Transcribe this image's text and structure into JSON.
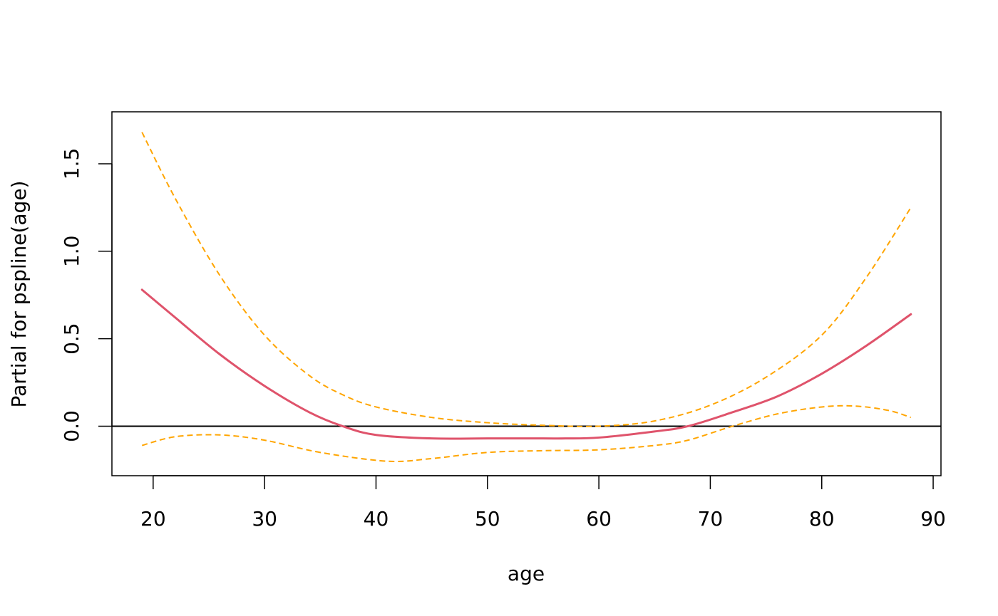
{
  "chart_data": {
    "type": "line",
    "xlabel": "age",
    "ylabel": "Partial for pspline(age)",
    "xlim": [
      16.3,
      90.7
    ],
    "ylim": [
      -0.283,
      1.797
    ],
    "x_ticks": [
      20,
      30,
      40,
      50,
      60,
      70,
      80,
      90
    ],
    "x_tick_labels": [
      "20",
      "30",
      "40",
      "50",
      "60",
      "70",
      "80",
      "90"
    ],
    "y_ticks": [
      0.0,
      0.5,
      1.0,
      1.5
    ],
    "y_tick_labels": [
      "0.0",
      "0.5",
      "1.0",
      "1.5"
    ],
    "reference_line_y": 0,
    "grid": false,
    "series": [
      {
        "style": "solid",
        "color": "#DF536B",
        "x": [
          19,
          22,
          26,
          30,
          34,
          37,
          40,
          45,
          50,
          55,
          57,
          60,
          65,
          68,
          72,
          76,
          80,
          84,
          88
        ],
        "y": [
          0.78,
          0.62,
          0.41,
          0.23,
          0.08,
          0.0,
          -0.05,
          -0.07,
          -0.07,
          -0.07,
          -0.07,
          -0.065,
          -0.03,
          0.0,
          0.08,
          0.17,
          0.3,
          0.46,
          0.64
        ]
      },
      {
        "style": "dashed",
        "color": "#FFA500",
        "x": [
          19,
          22,
          26,
          30,
          34,
          37,
          40,
          45,
          50,
          55,
          60,
          65,
          70,
          75,
          80,
          84,
          88
        ],
        "y": [
          1.68,
          1.3,
          0.86,
          0.52,
          0.29,
          0.18,
          0.11,
          0.05,
          0.02,
          0.005,
          0.0,
          0.03,
          0.12,
          0.28,
          0.52,
          0.85,
          1.25
        ]
      },
      {
        "style": "dashed",
        "color": "#FFA500",
        "x": [
          19,
          22,
          26,
          30,
          35,
          41,
          45,
          50,
          55,
          60,
          65,
          68,
          72,
          76,
          80,
          83,
          86,
          88
        ],
        "y": [
          -0.11,
          -0.06,
          -0.05,
          -0.08,
          -0.15,
          -0.2,
          -0.185,
          -0.15,
          -0.14,
          -0.135,
          -0.11,
          -0.08,
          0.0,
          0.07,
          0.11,
          0.115,
          0.09,
          0.05
        ]
      }
    ]
  }
}
